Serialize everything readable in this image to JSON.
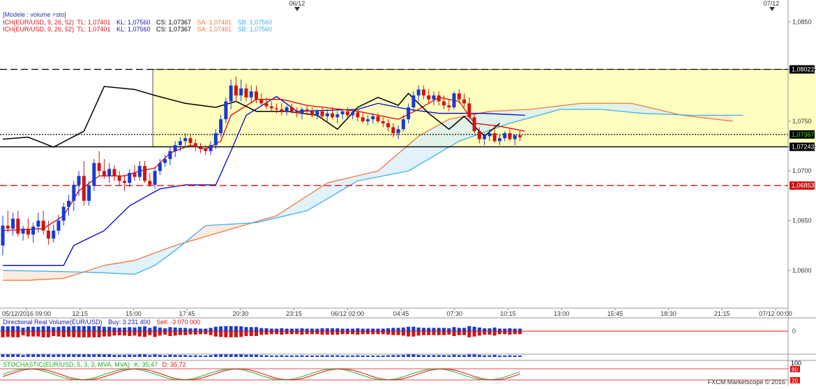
{
  "chart_data": {
    "type": "candlestick",
    "header": {
      "model": "[Modele : volume +sto]",
      "legend_lines": [
        {
          "name": "ICH(EUR/USD, 9, 26, 52)",
          "tl": "TL: 1,07401",
          "kl": "KL: 1,07560",
          "cs": "CS: 1,07367",
          "sa": "SA: 1,07481",
          "sb": "SB: 1,07560"
        },
        {
          "name": "ICH(EUR/USD, 9, 26, 52)",
          "tl": "TL: 1,07401",
          "kl": "KL: 1,07560",
          "cs": "CS: 1,07367",
          "sa": "SA: 1,07481",
          "sb": "SB: 1,07560"
        }
      ]
    },
    "top_markers": [
      "06/12",
      "07/12"
    ],
    "y_ticks": [
      "1,0850",
      "1,0750",
      "1,0700",
      "1,0650",
      "1,0600"
    ],
    "y_tick_values": [
      1.085,
      1.075,
      1.07,
      1.065,
      1.06
    ],
    "ylim": [
      1.0562,
      1.0872
    ],
    "x_ticks": [
      "05/12/2016 09:00",
      "12:15",
      "15:00",
      "17:45",
      "20:30",
      "23:15",
      "06/12 02:00",
      "04:45",
      "07:30",
      "10:15",
      "13:00",
      "15:45",
      "18:30",
      "21:15",
      "07/12 00:00"
    ],
    "price_labels": [
      {
        "text": "1,08022",
        "value": 1.08022,
        "bg": "#000000",
        "fg": "#ffffff"
      },
      {
        "text": "1,07367",
        "value": 1.07367,
        "bg": "#000000",
        "fg": "#36e836"
      },
      {
        "text": "1,07243",
        "value": 1.07243,
        "bg": "#000000",
        "fg": "#ffffff"
      },
      {
        "text": "1,06853",
        "value": 1.06853,
        "bg": "#cc1111",
        "fg": "#ffffff"
      }
    ],
    "levels": [
      {
        "value": 1.08022,
        "style": "dashed",
        "color": "#000000"
      },
      {
        "value": 1.07367,
        "style": "dotted",
        "color": "#000000"
      },
      {
        "value": 1.07243,
        "style": "solid",
        "color": "#000000"
      },
      {
        "value": 1.06853,
        "style": "dashed",
        "color": "#dd1111"
      }
    ],
    "range_box": {
      "bar_start": 30,
      "bar_end": 229,
      "top": 1.08022,
      "bottom": 1.07243,
      "fill": "#ffffc0"
    },
    "candles": [
      {
        "o": 1.0625,
        "h": 1.0655,
        "l": 1.0615,
        "c": 1.0645
      },
      {
        "o": 1.0645,
        "h": 1.066,
        "l": 1.0638,
        "c": 1.0642
      },
      {
        "o": 1.0642,
        "h": 1.0658,
        "l": 1.0635,
        "c": 1.0652
      },
      {
        "o": 1.0652,
        "h": 1.066,
        "l": 1.0634,
        "c": 1.0637
      },
      {
        "o": 1.0637,
        "h": 1.0645,
        "l": 1.063,
        "c": 1.0642
      },
      {
        "o": 1.0642,
        "h": 1.0652,
        "l": 1.0632,
        "c": 1.0636
      },
      {
        "o": 1.0636,
        "h": 1.0648,
        "l": 1.0628,
        "c": 1.0644
      },
      {
        "o": 1.0644,
        "h": 1.0658,
        "l": 1.0638,
        "c": 1.065
      },
      {
        "o": 1.065,
        "h": 1.066,
        "l": 1.0636,
        "c": 1.064
      },
      {
        "o": 1.064,
        "h": 1.065,
        "l": 1.0626,
        "c": 1.0632
      },
      {
        "o": 1.0632,
        "h": 1.0646,
        "l": 1.0628,
        "c": 1.064
      },
      {
        "o": 1.064,
        "h": 1.0656,
        "l": 1.0636,
        "c": 1.065
      },
      {
        "o": 1.065,
        "h": 1.0668,
        "l": 1.0645,
        "c": 1.0664
      },
      {
        "o": 1.0664,
        "h": 1.0676,
        "l": 1.0655,
        "c": 1.067
      },
      {
        "o": 1.067,
        "h": 1.069,
        "l": 1.066,
        "c": 1.0686
      },
      {
        "o": 1.0686,
        "h": 1.07,
        "l": 1.0675,
        "c": 1.0695
      },
      {
        "o": 1.0695,
        "h": 1.071,
        "l": 1.0665,
        "c": 1.067
      },
      {
        "o": 1.067,
        "h": 1.069,
        "l": 1.0665,
        "c": 1.0685
      },
      {
        "o": 1.0685,
        "h": 1.0712,
        "l": 1.068,
        "c": 1.0708
      },
      {
        "o": 1.0708,
        "h": 1.072,
        "l": 1.0695,
        "c": 1.07
      },
      {
        "o": 1.07,
        "h": 1.0712,
        "l": 1.0692,
        "c": 1.0695
      },
      {
        "o": 1.0695,
        "h": 1.0708,
        "l": 1.0688,
        "c": 1.0702
      },
      {
        "o": 1.0702,
        "h": 1.0706,
        "l": 1.069,
        "c": 1.0695
      },
      {
        "o": 1.0695,
        "h": 1.07,
        "l": 1.0685,
        "c": 1.069
      },
      {
        "o": 1.069,
        "h": 1.0696,
        "l": 1.068,
        "c": 1.0688
      },
      {
        "o": 1.0688,
        "h": 1.0702,
        "l": 1.0684,
        "c": 1.0698
      },
      {
        "o": 1.0698,
        "h": 1.0706,
        "l": 1.069,
        "c": 1.0694
      },
      {
        "o": 1.0694,
        "h": 1.071,
        "l": 1.069,
        "c": 1.0705
      },
      {
        "o": 1.0705,
        "h": 1.071,
        "l": 1.0688,
        "c": 1.069
      },
      {
        "o": 1.069,
        "h": 1.0698,
        "l": 1.0684,
        "c": 1.0686
      },
      {
        "o": 1.0686,
        "h": 1.0704,
        "l": 1.0682,
        "c": 1.07
      },
      {
        "o": 1.07,
        "h": 1.0712,
        "l": 1.0696,
        "c": 1.0708
      },
      {
        "o": 1.0708,
        "h": 1.0716,
        "l": 1.0704,
        "c": 1.0712
      },
      {
        "o": 1.0712,
        "h": 1.0724,
        "l": 1.0706,
        "c": 1.072
      },
      {
        "o": 1.072,
        "h": 1.073,
        "l": 1.0714,
        "c": 1.0726
      },
      {
        "o": 1.0726,
        "h": 1.0734,
        "l": 1.072,
        "c": 1.073
      },
      {
        "o": 1.073,
        "h": 1.0738,
        "l": 1.0724,
        "c": 1.0733
      },
      {
        "o": 1.0733,
        "h": 1.0736,
        "l": 1.0725,
        "c": 1.0728
      },
      {
        "o": 1.0728,
        "h": 1.0732,
        "l": 1.072,
        "c": 1.0724
      },
      {
        "o": 1.0724,
        "h": 1.0728,
        "l": 1.0718,
        "c": 1.0722
      },
      {
        "o": 1.0722,
        "h": 1.0726,
        "l": 1.0716,
        "c": 1.072
      },
      {
        "o": 1.072,
        "h": 1.073,
        "l": 1.0716,
        "c": 1.0726
      },
      {
        "o": 1.0726,
        "h": 1.0742,
        "l": 1.0722,
        "c": 1.0738
      },
      {
        "o": 1.0738,
        "h": 1.0756,
        "l": 1.0734,
        "c": 1.0752
      },
      {
        "o": 1.0752,
        "h": 1.0774,
        "l": 1.0748,
        "c": 1.077
      },
      {
        "o": 1.077,
        "h": 1.0792,
        "l": 1.0762,
        "c": 1.0786
      },
      {
        "o": 1.0786,
        "h": 1.0795,
        "l": 1.077,
        "c": 1.0776
      },
      {
        "o": 1.0776,
        "h": 1.0792,
        "l": 1.077,
        "c": 1.0783
      },
      {
        "o": 1.0783,
        "h": 1.0788,
        "l": 1.077,
        "c": 1.0774
      },
      {
        "o": 1.0774,
        "h": 1.0786,
        "l": 1.0768,
        "c": 1.078
      },
      {
        "o": 1.078,
        "h": 1.0786,
        "l": 1.0768,
        "c": 1.0772
      },
      {
        "o": 1.0772,
        "h": 1.0778,
        "l": 1.0765,
        "c": 1.0768
      },
      {
        "o": 1.0768,
        "h": 1.0774,
        "l": 1.0762,
        "c": 1.0765
      },
      {
        "o": 1.0765,
        "h": 1.077,
        "l": 1.076,
        "c": 1.0763
      },
      {
        "o": 1.0763,
        "h": 1.0768,
        "l": 1.0758,
        "c": 1.0762
      },
      {
        "o": 1.0762,
        "h": 1.0768,
        "l": 1.0756,
        "c": 1.076
      },
      {
        "o": 1.076,
        "h": 1.0766,
        "l": 1.0756,
        "c": 1.0764
      },
      {
        "o": 1.0764,
        "h": 1.0768,
        "l": 1.0758,
        "c": 1.076
      },
      {
        "o": 1.076,
        "h": 1.0764,
        "l": 1.0754,
        "c": 1.0758
      },
      {
        "o": 1.0758,
        "h": 1.0764,
        "l": 1.0752,
        "c": 1.0762
      },
      {
        "o": 1.0762,
        "h": 1.0766,
        "l": 1.0756,
        "c": 1.076
      },
      {
        "o": 1.076,
        "h": 1.0764,
        "l": 1.0754,
        "c": 1.0756
      },
      {
        "o": 1.0756,
        "h": 1.0762,
        "l": 1.0752,
        "c": 1.076
      },
      {
        "o": 1.076,
        "h": 1.0764,
        "l": 1.0752,
        "c": 1.0755
      },
      {
        "o": 1.0755,
        "h": 1.0762,
        "l": 1.075,
        "c": 1.0758
      },
      {
        "o": 1.0758,
        "h": 1.0764,
        "l": 1.0752,
        "c": 1.0754
      },
      {
        "o": 1.0754,
        "h": 1.076,
        "l": 1.0748,
        "c": 1.0757
      },
      {
        "o": 1.0757,
        "h": 1.0762,
        "l": 1.0752,
        "c": 1.076
      },
      {
        "o": 1.076,
        "h": 1.0764,
        "l": 1.0754,
        "c": 1.0756
      },
      {
        "o": 1.0756,
        "h": 1.0762,
        "l": 1.0752,
        "c": 1.0759
      },
      {
        "o": 1.0759,
        "h": 1.0762,
        "l": 1.075,
        "c": 1.0754
      },
      {
        "o": 1.0754,
        "h": 1.0758,
        "l": 1.0748,
        "c": 1.075
      },
      {
        "o": 1.075,
        "h": 1.0756,
        "l": 1.0746,
        "c": 1.0752
      },
      {
        "o": 1.0752,
        "h": 1.0758,
        "l": 1.0748,
        "c": 1.0755
      },
      {
        "o": 1.0755,
        "h": 1.0758,
        "l": 1.0748,
        "c": 1.075
      },
      {
        "o": 1.075,
        "h": 1.0754,
        "l": 1.0744,
        "c": 1.0748
      },
      {
        "o": 1.0748,
        "h": 1.0752,
        "l": 1.074,
        "c": 1.0744
      },
      {
        "o": 1.0744,
        "h": 1.0748,
        "l": 1.0734,
        "c": 1.0738
      },
      {
        "o": 1.0738,
        "h": 1.0746,
        "l": 1.0732,
        "c": 1.0742
      },
      {
        "o": 1.0742,
        "h": 1.0756,
        "l": 1.074,
        "c": 1.0752
      },
      {
        "o": 1.0752,
        "h": 1.0768,
        "l": 1.0748,
        "c": 1.0764
      },
      {
        "o": 1.0764,
        "h": 1.078,
        "l": 1.076,
        "c": 1.0776
      },
      {
        "o": 1.0776,
        "h": 1.0786,
        "l": 1.077,
        "c": 1.0782
      },
      {
        "o": 1.0782,
        "h": 1.0786,
        "l": 1.0772,
        "c": 1.0776
      },
      {
        "o": 1.0776,
        "h": 1.0782,
        "l": 1.0768,
        "c": 1.0772
      },
      {
        "o": 1.0772,
        "h": 1.078,
        "l": 1.0766,
        "c": 1.0776
      },
      {
        "o": 1.0776,
        "h": 1.078,
        "l": 1.0766,
        "c": 1.077
      },
      {
        "o": 1.077,
        "h": 1.0776,
        "l": 1.0762,
        "c": 1.0766
      },
      {
        "o": 1.0766,
        "h": 1.0772,
        "l": 1.076,
        "c": 1.0764
      },
      {
        "o": 1.0764,
        "h": 1.078,
        "l": 1.0762,
        "c": 1.0778
      },
      {
        "o": 1.0778,
        "h": 1.0782,
        "l": 1.0768,
        "c": 1.0772
      },
      {
        "o": 1.0772,
        "h": 1.0778,
        "l": 1.0764,
        "c": 1.0768
      },
      {
        "o": 1.0768,
        "h": 1.0774,
        "l": 1.075,
        "c": 1.0754
      },
      {
        "o": 1.0754,
        "h": 1.0758,
        "l": 1.0738,
        "c": 1.074
      },
      {
        "o": 1.074,
        "h": 1.0744,
        "l": 1.0728,
        "c": 1.0732
      },
      {
        "o": 1.0732,
        "h": 1.0738,
        "l": 1.0726,
        "c": 1.0735
      },
      {
        "o": 1.0735,
        "h": 1.0742,
        "l": 1.073,
        "c": 1.0738
      },
      {
        "o": 1.0738,
        "h": 1.0744,
        "l": 1.0728,
        "c": 1.073
      },
      {
        "o": 1.073,
        "h": 1.0736,
        "l": 1.0726,
        "c": 1.0733
      },
      {
        "o": 1.0733,
        "h": 1.074,
        "l": 1.073,
        "c": 1.0738
      },
      {
        "o": 1.0738,
        "h": 1.0742,
        "l": 1.073,
        "c": 1.0732
      },
      {
        "o": 1.0732,
        "h": 1.0736,
        "l": 1.0726,
        "c": 1.0736
      },
      {
        "o": 1.0736,
        "h": 1.074,
        "l": 1.073,
        "c": 1.0734
      }
    ],
    "tenkan_color": "#dd0000",
    "kijun_color": "#0000cc",
    "chikou_color": "#000000",
    "senkou_a_color": "#f07840",
    "senkou_b_color": "#40b0e8",
    "tenkan": [
      [
        0,
        1.064
      ],
      [
        8,
        1.0642
      ],
      [
        12,
        1.0655
      ],
      [
        15,
        1.068
      ],
      [
        19,
        1.0695
      ],
      [
        24,
        1.0695
      ],
      [
        27,
        1.07
      ],
      [
        30,
        1.0703
      ],
      [
        33,
        1.0718
      ],
      [
        37,
        1.0726
      ],
      [
        40,
        1.0722
      ],
      [
        43,
        1.073
      ],
      [
        45,
        1.0756
      ],
      [
        50,
        1.0772
      ],
      [
        55,
        1.0772
      ],
      [
        60,
        1.0766
      ],
      [
        70,
        1.076
      ],
      [
        78,
        1.0752
      ],
      [
        82,
        1.0762
      ],
      [
        86,
        1.0774
      ],
      [
        90,
        1.077
      ],
      [
        93,
        1.0748
      ],
      [
        98,
        1.0745
      ],
      [
        103,
        1.074
      ]
    ],
    "kijun": [
      [
        0,
        1.0605
      ],
      [
        12,
        1.0605
      ],
      [
        14,
        1.0625
      ],
      [
        20,
        1.064
      ],
      [
        25,
        1.0665
      ],
      [
        31,
        1.0682
      ],
      [
        36,
        1.0686
      ],
      [
        42,
        1.0686
      ],
      [
        45,
        1.072
      ],
      [
        48,
        1.0756
      ],
      [
        54,
        1.0775
      ],
      [
        58,
        1.076
      ],
      [
        70,
        1.0762
      ],
      [
        74,
        1.0768
      ],
      [
        80,
        1.0762
      ],
      [
        86,
        1.0758
      ],
      [
        95,
        1.0758
      ],
      [
        103,
        1.0756
      ]
    ],
    "chikou": [
      [
        0,
        1.0732
      ],
      [
        5,
        1.0734
      ],
      [
        10,
        1.0724
      ],
      [
        16,
        1.074
      ],
      [
        20,
        1.0785
      ],
      [
        26,
        1.0782
      ],
      [
        30,
        1.0776
      ],
      [
        36,
        1.0768
      ],
      [
        42,
        1.0764
      ],
      [
        46,
        1.077
      ],
      [
        50,
        1.076
      ],
      [
        56,
        1.076
      ],
      [
        62,
        1.0756
      ],
      [
        66,
        1.0742
      ],
      [
        70,
        1.0764
      ],
      [
        74,
        1.0774
      ],
      [
        78,
        1.0766
      ],
      [
        80,
        1.0778
      ],
      [
        84,
        1.0758
      ],
      [
        88,
        1.0742
      ],
      [
        91,
        1.0755
      ],
      [
        95,
        1.0735
      ],
      [
        98,
        1.0748
      ]
    ],
    "senkou_a": [
      [
        0,
        1.059
      ],
      [
        5,
        1.059
      ],
      [
        12,
        1.0592
      ],
      [
        20,
        1.0605
      ],
      [
        26,
        1.061
      ],
      [
        34,
        1.0625
      ],
      [
        44,
        1.064
      ],
      [
        54,
        1.0655
      ],
      [
        64,
        1.0688
      ],
      [
        74,
        1.07
      ],
      [
        82,
        1.0735
      ],
      [
        88,
        1.0752
      ],
      [
        96,
        1.076
      ],
      [
        104,
        1.0762
      ],
      [
        114,
        1.0768
      ],
      [
        124,
        1.0768
      ],
      [
        134,
        1.0756
      ],
      [
        144,
        1.075
      ]
    ],
    "senkou_b": [
      [
        0,
        1.06
      ],
      [
        18,
        1.0598
      ],
      [
        26,
        1.0596
      ],
      [
        30,
        1.0605
      ],
      [
        34,
        1.062
      ],
      [
        40,
        1.0645
      ],
      [
        50,
        1.0648
      ],
      [
        60,
        1.066
      ],
      [
        70,
        1.069
      ],
      [
        80,
        1.07
      ],
      [
        90,
        1.073
      ],
      [
        100,
        1.0748
      ],
      [
        110,
        1.0762
      ],
      [
        118,
        1.0762
      ],
      [
        126,
        1.0758
      ],
      [
        136,
        1.0756
      ],
      [
        146,
        1.0756
      ]
    ],
    "volume_panel": {
      "title": "Directional Real Volume(EUR/USD)",
      "buy": "Buy: 3 231 400",
      "sell": "Sell: -3 070 000",
      "zero_label": "0"
    },
    "stochastic_panel": {
      "title": "STOCHASTIC(EUR/USD, 5, 3, 3, MVA, MVA)",
      "k": "K: 35,47",
      "d": "D: 35,72",
      "levels": [
        "80",
        "20"
      ],
      "upper_label": "100"
    },
    "footer": "FXCM Marketscope © 2016"
  }
}
